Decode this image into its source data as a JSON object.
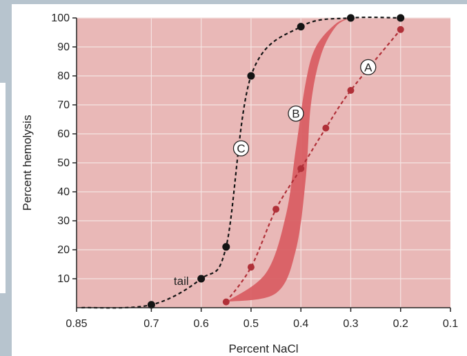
{
  "chart_data": {
    "type": "line",
    "xlabel": "Percent NaCl",
    "ylabel": "Percent hemolysis",
    "xlim": [
      0.85,
      0.1
    ],
    "ylim": [
      0,
      100
    ],
    "x_reversed": true,
    "grid": true,
    "x_ticks": [
      "0.85",
      "0.7",
      "0.6",
      "0.5",
      "0.4",
      "0.3",
      "0.2",
      "0.1"
    ],
    "x_tick_values": [
      0.85,
      0.7,
      0.6,
      0.5,
      0.4,
      0.3,
      0.2,
      0.1
    ],
    "y_ticks": [
      "10",
      "20",
      "30",
      "40",
      "50",
      "60",
      "70",
      "80",
      "90",
      "100"
    ],
    "y_tick_values": [
      10,
      20,
      30,
      40,
      50,
      60,
      70,
      80,
      90,
      100
    ],
    "colors": {
      "plot_background": "#e9b8b7",
      "grid": "#f5e4e2",
      "curve_A": "#b03038",
      "band_B": "#d85a5f",
      "curve_C": "#141414"
    },
    "series": [
      {
        "name": "A",
        "style": "dashed-with-dots",
        "x": [
          0.55,
          0.5,
          0.45,
          0.4,
          0.35,
          0.3,
          0.2
        ],
        "y": [
          2,
          14,
          34,
          48,
          62,
          75,
          96
        ]
      },
      {
        "name": "C",
        "style": "dashed-with-dots",
        "x": [
          0.7,
          0.6,
          0.55,
          0.5,
          0.4,
          0.3,
          0.2
        ],
        "y": [
          1,
          10,
          21,
          80,
          97,
          100,
          100
        ]
      },
      {
        "name": "B",
        "style": "shaded-band",
        "upper": {
          "x": [
            0.55,
            0.47,
            0.43,
            0.41,
            0.39,
            0.37,
            0.33,
            0.3
          ],
          "y": [
            2,
            12,
            32,
            55,
            78,
            90,
            98,
            100
          ]
        },
        "lower": {
          "x": [
            0.55,
            0.45,
            0.41,
            0.39,
            0.38,
            0.36,
            0.33,
            0.3
          ],
          "y": [
            2,
            5,
            20,
            45,
            70,
            87,
            97,
            100
          ]
        }
      }
    ],
    "annotations": [
      {
        "text": "A",
        "circled": true,
        "x": 0.265,
        "y": 83
      },
      {
        "text": "B",
        "circled": true,
        "x": 0.41,
        "y": 67
      },
      {
        "text": "C",
        "circled": true,
        "x": 0.52,
        "y": 55
      },
      {
        "text": "tail",
        "circled": false,
        "x": 0.64,
        "y": 9
      }
    ]
  }
}
